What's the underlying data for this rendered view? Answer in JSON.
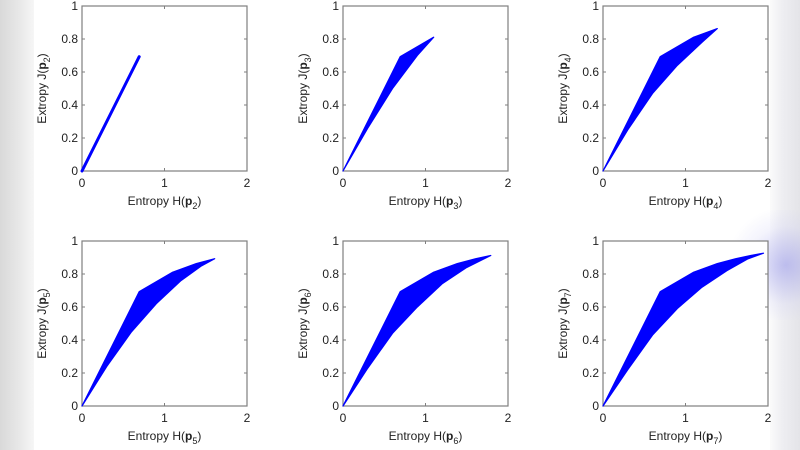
{
  "figure": {
    "fill_color": "#0000ff",
    "axis_color": "#7f7f7f",
    "background": "#ffffff"
  },
  "chart_data": [
    {
      "type": "area",
      "title": "",
      "xlabel": "Entropy H(p2)",
      "ylabel": "Extropy J(p2)",
      "subscript": "2",
      "xlim": [
        0,
        2
      ],
      "ylim": [
        0,
        1
      ],
      "xticks": [
        0,
        1,
        2
      ],
      "yticks": [
        0,
        0.2,
        0.4,
        0.6,
        0.8,
        1
      ],
      "xtick_labels": [
        "0",
        "1",
        "2"
      ],
      "ytick_labels": [
        "0",
        "0.2",
        "0.4",
        "0.6",
        "0.8",
        "1"
      ],
      "grid": false,
      "upper": [
        [
          0,
          0
        ],
        [
          0.693,
          0.693
        ]
      ],
      "lower": [
        [
          0,
          0
        ],
        [
          0.693,
          0.693
        ]
      ],
      "endpoint": [
        0.693,
        0.693
      ]
    },
    {
      "type": "area",
      "title": "",
      "xlabel": "Entropy H(p3)",
      "ylabel": "Extropy J(p3)",
      "subscript": "3",
      "xlim": [
        0,
        2
      ],
      "ylim": [
        0,
        1
      ],
      "xticks": [
        0,
        1,
        2
      ],
      "yticks": [
        0,
        0.2,
        0.4,
        0.6,
        0.8,
        1
      ],
      "xtick_labels": [
        "0",
        "1",
        "2"
      ],
      "ytick_labels": [
        "0",
        "0.2",
        "0.4",
        "0.6",
        "0.8",
        "1"
      ],
      "grid": false,
      "upper": [
        [
          0,
          0
        ],
        [
          0.693,
          0.693
        ],
        [
          1.099,
          0.811
        ]
      ],
      "lower": [
        [
          0,
          0
        ],
        [
          0.3,
          0.26
        ],
        [
          0.6,
          0.5
        ],
        [
          0.9,
          0.7
        ],
        [
          1.099,
          0.811
        ]
      ],
      "endpoint": [
        1.099,
        0.811
      ]
    },
    {
      "type": "area",
      "title": "",
      "xlabel": "Entropy H(p4)",
      "ylabel": "Extropy J(p4)",
      "subscript": "4",
      "xlim": [
        0,
        2
      ],
      "ylim": [
        0,
        1
      ],
      "xticks": [
        0,
        1,
        2
      ],
      "yticks": [
        0,
        0.2,
        0.4,
        0.6,
        0.8,
        1
      ],
      "xtick_labels": [
        "0",
        "1",
        "2"
      ],
      "ytick_labels": [
        "0",
        "0.2",
        "0.4",
        "0.6",
        "0.8",
        "1"
      ],
      "grid": false,
      "upper": [
        [
          0,
          0
        ],
        [
          0.693,
          0.693
        ],
        [
          1.099,
          0.811
        ],
        [
          1.386,
          0.863
        ]
      ],
      "lower": [
        [
          0,
          0
        ],
        [
          0.3,
          0.25
        ],
        [
          0.6,
          0.47
        ],
        [
          0.9,
          0.64
        ],
        [
          1.2,
          0.78
        ],
        [
          1.386,
          0.863
        ]
      ],
      "endpoint": [
        1.386,
        0.863
      ]
    },
    {
      "type": "area",
      "title": "",
      "xlabel": "Entropy H(p5)",
      "ylabel": "Extropy J(p5)",
      "subscript": "5",
      "xlim": [
        0,
        2
      ],
      "ylim": [
        0,
        1
      ],
      "xticks": [
        0,
        1,
        2
      ],
      "yticks": [
        0,
        0.2,
        0.4,
        0.6,
        0.8,
        1
      ],
      "xtick_labels": [
        "0",
        "1",
        "2"
      ],
      "ytick_labels": [
        "0",
        "0.2",
        "0.4",
        "0.6",
        "0.8",
        "1"
      ],
      "grid": false,
      "upper": [
        [
          0,
          0
        ],
        [
          0.693,
          0.693
        ],
        [
          1.099,
          0.811
        ],
        [
          1.386,
          0.863
        ],
        [
          1.609,
          0.893
        ]
      ],
      "lower": [
        [
          0,
          0
        ],
        [
          0.3,
          0.24
        ],
        [
          0.6,
          0.45
        ],
        [
          0.9,
          0.62
        ],
        [
          1.2,
          0.76
        ],
        [
          1.45,
          0.85
        ],
        [
          1.609,
          0.893
        ]
      ],
      "endpoint": [
        1.609,
        0.893
      ]
    },
    {
      "type": "area",
      "title": "",
      "xlabel": "Entropy H(p6)",
      "ylabel": "Extropy J(p6)",
      "subscript": "6",
      "xlim": [
        0,
        2
      ],
      "ylim": [
        0,
        1
      ],
      "xticks": [
        0,
        1,
        2
      ],
      "yticks": [
        0,
        0.2,
        0.4,
        0.6,
        0.8,
        1
      ],
      "xtick_labels": [
        "0",
        "1",
        "2"
      ],
      "ytick_labels": [
        "0",
        "0.2",
        "0.4",
        "0.6",
        "0.8",
        "1"
      ],
      "grid": false,
      "upper": [
        [
          0,
          0
        ],
        [
          0.693,
          0.693
        ],
        [
          1.099,
          0.811
        ],
        [
          1.386,
          0.863
        ],
        [
          1.609,
          0.893
        ],
        [
          1.792,
          0.912
        ]
      ],
      "lower": [
        [
          0,
          0
        ],
        [
          0.3,
          0.23
        ],
        [
          0.6,
          0.44
        ],
        [
          0.9,
          0.6
        ],
        [
          1.2,
          0.74
        ],
        [
          1.5,
          0.84
        ],
        [
          1.792,
          0.912
        ]
      ],
      "endpoint": [
        1.792,
        0.912
      ]
    },
    {
      "type": "area",
      "title": "",
      "xlabel": "Entropy H(p7)",
      "ylabel": "Extropy J(p7)",
      "subscript": "7",
      "xlim": [
        0,
        2
      ],
      "ylim": [
        0,
        1
      ],
      "xticks": [
        0,
        1,
        2
      ],
      "yticks": [
        0,
        0.2,
        0.4,
        0.6,
        0.8,
        1
      ],
      "xtick_labels": [
        "0",
        "1",
        "2"
      ],
      "ytick_labels": [
        "0",
        "0.2",
        "0.4",
        "0.6",
        "0.8",
        "1"
      ],
      "grid": false,
      "upper": [
        [
          0,
          0
        ],
        [
          0.693,
          0.693
        ],
        [
          1.099,
          0.811
        ],
        [
          1.386,
          0.863
        ],
        [
          1.609,
          0.893
        ],
        [
          1.792,
          0.912
        ],
        [
          1.946,
          0.926
        ]
      ],
      "lower": [
        [
          0,
          0
        ],
        [
          0.3,
          0.22
        ],
        [
          0.6,
          0.43
        ],
        [
          0.9,
          0.59
        ],
        [
          1.2,
          0.72
        ],
        [
          1.5,
          0.82
        ],
        [
          1.75,
          0.89
        ],
        [
          1.946,
          0.926
        ]
      ],
      "endpoint": [
        1.946,
        0.926
      ]
    }
  ],
  "panels": [
    {
      "x_label_prefix": "Entropy H(",
      "x_label_var": "p",
      "x_label_sub": "2",
      "x_label_suffix": ")",
      "y_label_prefix": "Extropy J(",
      "y_label_var": "p",
      "y_label_sub": "2",
      "y_label_suffix": ")"
    },
    {
      "x_label_prefix": "Entropy H(",
      "x_label_var": "p",
      "x_label_sub": "3",
      "x_label_suffix": ")",
      "y_label_prefix": "Extropy J(",
      "y_label_var": "p",
      "y_label_sub": "3",
      "y_label_suffix": ")"
    },
    {
      "x_label_prefix": "Entropy H(",
      "x_label_var": "p",
      "x_label_sub": "4",
      "x_label_suffix": ")",
      "y_label_prefix": "Extropy J(",
      "y_label_var": "p",
      "y_label_sub": "4",
      "y_label_suffix": ")"
    },
    {
      "x_label_prefix": "Entropy H(",
      "x_label_var": "p",
      "x_label_sub": "5",
      "x_label_suffix": ")",
      "y_label_prefix": "Extropy J(",
      "y_label_var": "p",
      "y_label_sub": "5",
      "y_label_suffix": ")"
    },
    {
      "x_label_prefix": "Entropy H(",
      "x_label_var": "p",
      "x_label_sub": "6",
      "x_label_suffix": ")",
      "y_label_prefix": "Extropy J(",
      "y_label_var": "p",
      "y_label_sub": "6",
      "y_label_suffix": ")"
    },
    {
      "x_label_prefix": "Entropy H(",
      "x_label_var": "p",
      "x_label_sub": "7",
      "x_label_suffix": ")",
      "y_label_prefix": "Extropy J(",
      "y_label_var": "p",
      "y_label_sub": "7",
      "y_label_suffix": ")"
    }
  ]
}
